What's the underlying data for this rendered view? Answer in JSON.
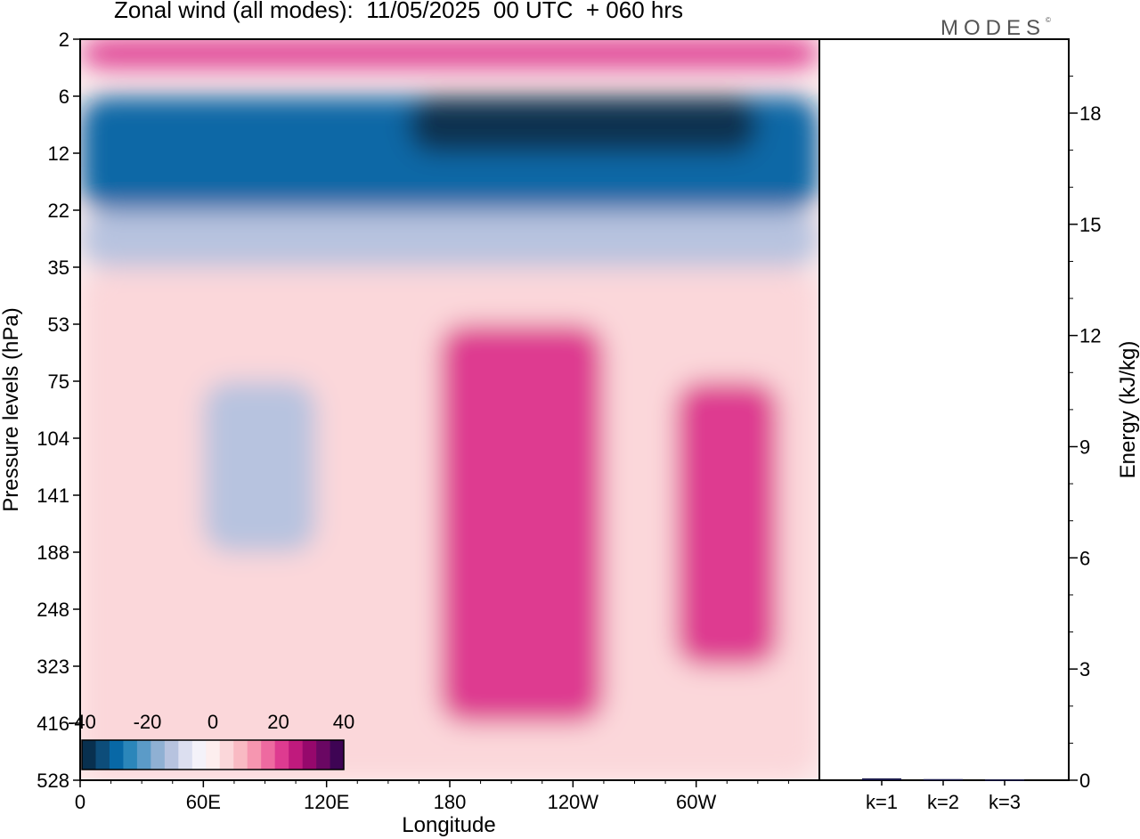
{
  "header": {
    "title": "Zonal wind (all modes):  11/05/2025  00 UTC  + 060 hrs",
    "brand": "MODES",
    "brand_mark": "©"
  },
  "chart_data": [
    {
      "type": "heatmap",
      "title": "Zonal wind (all modes):  11/05/2025  00 UTC  + 060 hrs",
      "xlabel": "Longitude",
      "ylabel": "Pressure levels (hPa)",
      "x_ticks": [
        "0",
        "60E",
        "120E",
        "180",
        "120W",
        "60W"
      ],
      "x_tick_values": [
        0,
        60,
        120,
        180,
        240,
        300
      ],
      "xlim": [
        0,
        360
      ],
      "y_ticks": [
        "2",
        "6",
        "12",
        "22",
        "35",
        "53",
        "75",
        "104",
        "141",
        "188",
        "248",
        "323",
        "416",
        "528"
      ],
      "colorbar": {
        "tick_labels": [
          "-40",
          "-20",
          "0",
          "20",
          "40"
        ],
        "range": [
          -40,
          40
        ],
        "colors": [
          "#08304f",
          "#0d4d7a",
          "#0868a6",
          "#2b86ba",
          "#5b9bc8",
          "#8fb0d3",
          "#b7c3df",
          "#dcdff0",
          "#f4f2f9",
          "#fdeeee",
          "#fbd7da",
          "#f9bac3",
          "#f696b0",
          "#ee6aa0",
          "#de3b90",
          "#c01a7d",
          "#96086c",
          "#6a0763",
          "#3e0454"
        ]
      },
      "regions": [
        {
          "name": "upper-positive-band",
          "level_range": [
            "2",
            "4"
          ],
          "lon_range": [
            0,
            360
          ],
          "value": 20
        },
        {
          "name": "strong-easterly-band",
          "level_range": [
            "6",
            "22"
          ],
          "lon_range": [
            0,
            360
          ],
          "value": -30
        },
        {
          "name": "easterly-core",
          "level_range": [
            "6",
            "12"
          ],
          "lon_range": [
            160,
            330
          ],
          "value": -40
        },
        {
          "name": "transition-band",
          "level_range": [
            "22",
            "35"
          ],
          "lon_range": [
            0,
            360
          ],
          "value": -12
        },
        {
          "name": "weak-westerly-layer",
          "level_range": [
            "35",
            "528"
          ],
          "lon_range": [
            0,
            360
          ],
          "value": 4
        },
        {
          "name": "easterly-pocket-60E-120E",
          "level_range": [
            "75",
            "188"
          ],
          "lon_range": [
            60,
            115
          ],
          "value": -12
        },
        {
          "name": "westerly-max-near-130W",
          "level_range": [
            "53",
            "416"
          ],
          "lon_range": [
            175,
            255
          ],
          "value": 22
        },
        {
          "name": "westerly-max-near-60W",
          "level_range": [
            "75",
            "323"
          ],
          "lon_range": [
            290,
            340
          ],
          "value": 22
        }
      ]
    },
    {
      "type": "bar",
      "title": "",
      "xlabel": "",
      "ylabel": "Energy (kJ/kg)",
      "categories": [
        "k=1",
        "k=2",
        "k=3"
      ],
      "values": [
        0.05,
        0.03,
        0.02
      ],
      "ylim": [
        0,
        20
      ],
      "y_ticks": [
        "0",
        "3",
        "6",
        "9",
        "12",
        "15",
        "18"
      ],
      "bar_color": "#1a1a4a"
    }
  ]
}
